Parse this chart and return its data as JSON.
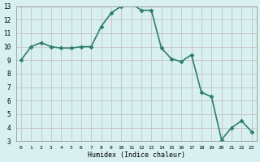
{
  "x": [
    0,
    1,
    2,
    3,
    4,
    5,
    6,
    7,
    8,
    9,
    10,
    11,
    12,
    13,
    14,
    15,
    16,
    17,
    18,
    19,
    20,
    21,
    22,
    23
  ],
  "y": [
    9,
    10,
    10.3,
    10,
    9.9,
    9.9,
    10,
    10,
    11.5,
    12.5,
    13,
    13.2,
    12.7,
    12.7,
    9.9,
    9.1,
    8.9,
    9.4,
    6.6,
    6.3,
    3.1,
    4.0,
    4.5,
    3.7
  ],
  "line_color": "#2e7d6e",
  "bg_color": "#d8f0f0",
  "grid_color": "#c0b8b8",
  "xlabel": "Humidex (Indice chaleur)",
  "ylim": [
    3,
    13
  ],
  "xlim": [
    -0.5,
    23.5
  ],
  "yticks": [
    3,
    4,
    5,
    6,
    7,
    8,
    9,
    10,
    11,
    12,
    13
  ],
  "xticks": [
    0,
    1,
    2,
    3,
    4,
    5,
    6,
    7,
    8,
    9,
    10,
    11,
    12,
    13,
    14,
    15,
    16,
    17,
    18,
    19,
    20,
    21,
    22,
    23
  ],
  "marker_size": 2.5,
  "line_width": 1.2
}
